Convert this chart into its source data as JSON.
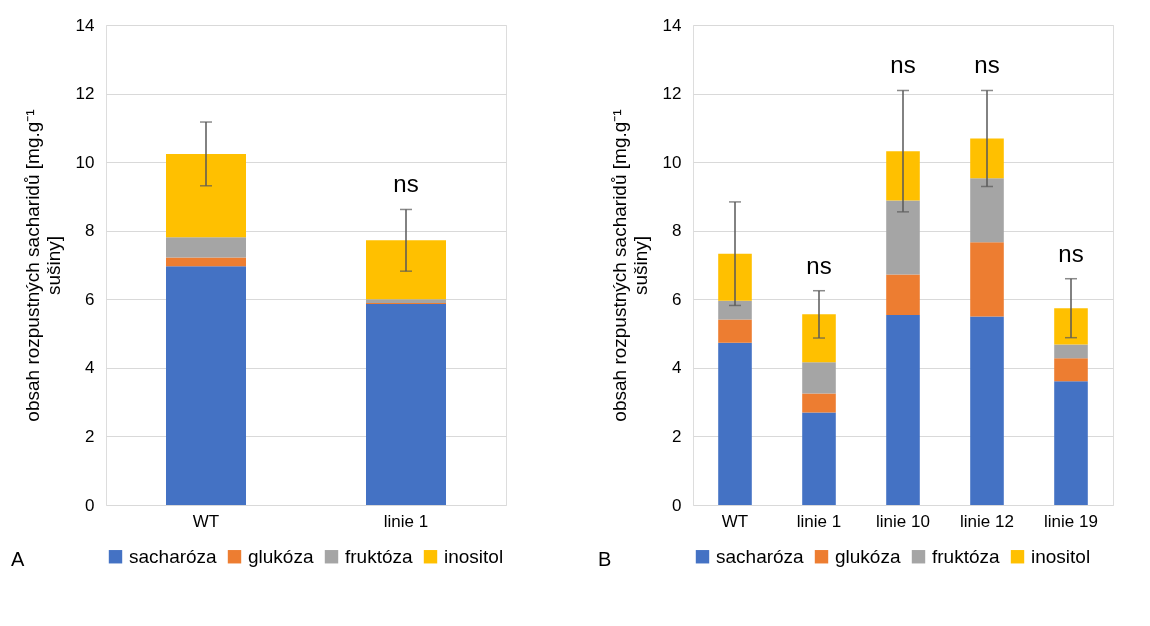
{
  "chart_data": [
    {
      "type": "bar",
      "stacked": true,
      "categories": [
        "WT",
        "linie 1"
      ],
      "ylabel": "obsah rozpustných sacharidů [mg.g⁻¹ sušiny]",
      "ylim": [
        0,
        14
      ],
      "yticks": [
        0,
        2,
        4,
        6,
        8,
        10,
        12,
        14
      ],
      "grid": "y",
      "legend": "bottom",
      "series": [
        {
          "name": "sacharóza",
          "color": "#4472c4",
          "values": [
            6.96,
            5.86
          ]
        },
        {
          "name": "glukóza",
          "color": "#ed7d31",
          "values": [
            0.26,
            0.03
          ]
        },
        {
          "name": "fruktóza",
          "color": "#a5a5a5",
          "values": [
            0.59,
            0.11
          ]
        },
        {
          "name": "inositol",
          "color": "#ffc000",
          "values": [
            2.43,
            1.72
          ],
          "errors": [
            0.93,
            0.9
          ]
        }
      ],
      "annotations": [
        "A",
        {
          "text": "ns",
          "x": "linie 1",
          "y": 8.62
        }
      ]
    },
    {
      "type": "bar",
      "stacked": true,
      "categories": [
        "WT",
        "linie 1",
        "linie 10",
        "linie 12",
        "linie 19"
      ],
      "ylabel": "obsah rozpustných sacharidů [mg.g⁻¹ sušiny]",
      "ylim": [
        0,
        14
      ],
      "yticks": [
        0,
        2,
        4,
        6,
        8,
        10,
        12,
        14
      ],
      "grid": "y",
      "legend": "bottom",
      "series": [
        {
          "name": "sacharóza",
          "color": "#4472c4",
          "values": [
            4.73,
            2.7,
            5.54,
            5.5,
            3.61
          ]
        },
        {
          "name": "glukóza",
          "color": "#ed7d31",
          "values": [
            0.68,
            0.55,
            1.18,
            2.16,
            0.67
          ]
        },
        {
          "name": "fruktóza",
          "color": "#a5a5a5",
          "values": [
            0.55,
            0.91,
            2.16,
            1.87,
            0.4
          ]
        },
        {
          "name": "inositol",
          "color": "#ffc000",
          "values": [
            1.37,
            1.4,
            1.44,
            1.16,
            1.06
          ],
          "errors": [
            1.51,
            0.69,
            1.77,
            1.4,
            0.86
          ]
        }
      ],
      "annotations": [
        "B",
        {
          "text": "ns",
          "x": "linie 1",
          "y": 6.25
        },
        {
          "text": "ns",
          "x": "linie 10",
          "y": 12.09
        },
        {
          "text": "ns",
          "x": "linie 12",
          "y": 12.09
        },
        {
          "text": "ns",
          "x": "linie 19",
          "y": 6.6
        }
      ]
    }
  ]
}
